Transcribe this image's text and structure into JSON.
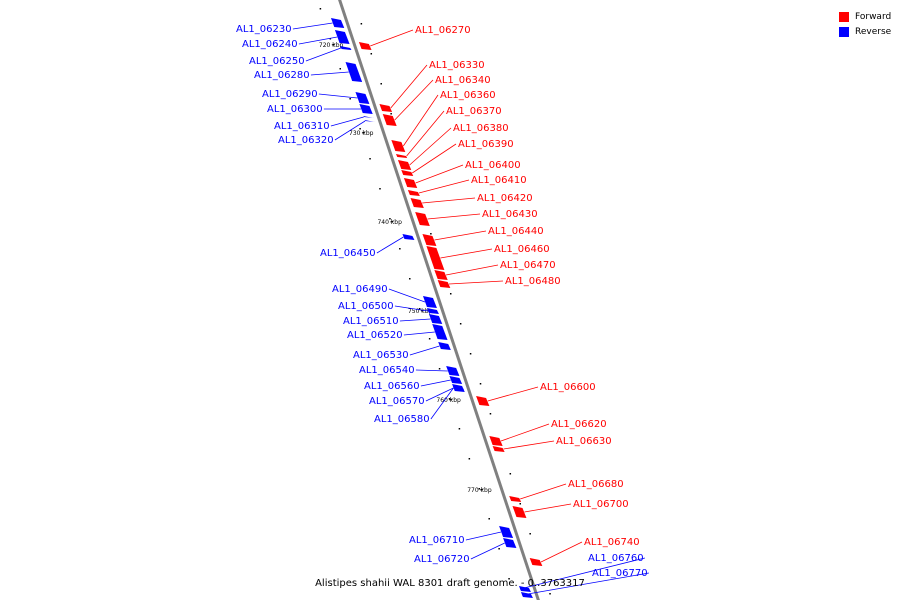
{
  "legend": {
    "forward": {
      "label": "Forward",
      "color": "#ff0000"
    },
    "reverse": {
      "label": "Reverse",
      "color": "#0000ff"
    }
  },
  "caption": "Alistipes shahii WAL 8301 draft genome. - 0..3763317",
  "axis_color": "#808080",
  "ticks": [
    "720 kbp",
    "730 kbp",
    "740 kbp",
    "750 kbp",
    "760 kbp",
    "770 kbp"
  ],
  "genes": [
    {
      "name": "AL1_06230",
      "strand": "reverse"
    },
    {
      "name": "AL1_06240",
      "strand": "reverse"
    },
    {
      "name": "AL1_06250",
      "strand": "reverse"
    },
    {
      "name": "AL1_06270",
      "strand": "forward"
    },
    {
      "name": "AL1_06280",
      "strand": "reverse"
    },
    {
      "name": "AL1_06290",
      "strand": "reverse"
    },
    {
      "name": "AL1_06300",
      "strand": "reverse"
    },
    {
      "name": "AL1_06310",
      "strand": "reverse"
    },
    {
      "name": "AL1_06320",
      "strand": "reverse"
    },
    {
      "name": "AL1_06330",
      "strand": "forward"
    },
    {
      "name": "AL1_06340",
      "strand": "forward"
    },
    {
      "name": "AL1_06360",
      "strand": "forward"
    },
    {
      "name": "AL1_06370",
      "strand": "forward"
    },
    {
      "name": "AL1_06380",
      "strand": "forward"
    },
    {
      "name": "AL1_06390",
      "strand": "forward"
    },
    {
      "name": "AL1_06400",
      "strand": "forward"
    },
    {
      "name": "AL1_06410",
      "strand": "forward"
    },
    {
      "name": "AL1_06420",
      "strand": "forward"
    },
    {
      "name": "AL1_06430",
      "strand": "forward"
    },
    {
      "name": "AL1_06440",
      "strand": "forward"
    },
    {
      "name": "AL1_06450",
      "strand": "reverse"
    },
    {
      "name": "AL1_06460",
      "strand": "forward"
    },
    {
      "name": "AL1_06470",
      "strand": "forward"
    },
    {
      "name": "AL1_06480",
      "strand": "forward"
    },
    {
      "name": "AL1_06490",
      "strand": "reverse"
    },
    {
      "name": "AL1_06500",
      "strand": "reverse"
    },
    {
      "name": "AL1_06510",
      "strand": "reverse"
    },
    {
      "name": "AL1_06520",
      "strand": "reverse"
    },
    {
      "name": "AL1_06530",
      "strand": "reverse"
    },
    {
      "name": "AL1_06540",
      "strand": "reverse"
    },
    {
      "name": "AL1_06560",
      "strand": "reverse"
    },
    {
      "name": "AL1_06570",
      "strand": "reverse"
    },
    {
      "name": "AL1_06580",
      "strand": "reverse"
    },
    {
      "name": "AL1_06600",
      "strand": "forward"
    },
    {
      "name": "AL1_06620",
      "strand": "forward"
    },
    {
      "name": "AL1_06630",
      "strand": "forward"
    },
    {
      "name": "AL1_06680",
      "strand": "forward"
    },
    {
      "name": "AL1_06700",
      "strand": "forward"
    },
    {
      "name": "AL1_06710",
      "strand": "reverse"
    },
    {
      "name": "AL1_06720",
      "strand": "reverse"
    },
    {
      "name": "AL1_06740",
      "strand": "forward"
    },
    {
      "name": "AL1_06760",
      "strand": "reverse"
    },
    {
      "name": "AL1_06770",
      "strand": "reverse"
    }
  ]
}
